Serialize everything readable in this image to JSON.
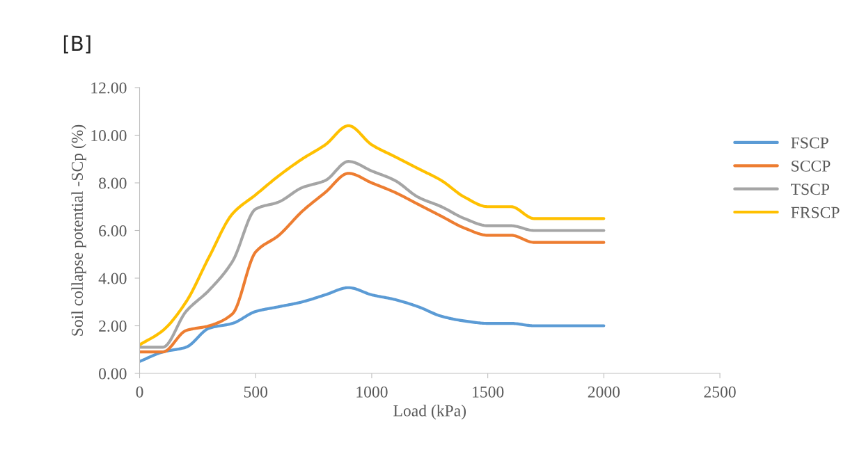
{
  "chart_data": {
    "type": "line",
    "title": "[B]",
    "xlabel": "Load (kPa)",
    "ylabel": "Soil collapse potential -SCp (%)",
    "x": [
      0,
      100,
      200,
      300,
      400,
      500,
      600,
      700,
      800,
      900,
      1000,
      1100,
      1200,
      1300,
      1400,
      1500,
      1600,
      1700,
      1800,
      2000
    ],
    "series": [
      {
        "name": "FSCP",
        "color": "#5b9bd5",
        "values": [
          0.5,
          0.9,
          1.1,
          1.9,
          2.1,
          2.6,
          2.8,
          3.0,
          3.3,
          3.6,
          3.3,
          3.1,
          2.8,
          2.4,
          2.2,
          2.1,
          2.1,
          2.0,
          2.0,
          2.0
        ]
      },
      {
        "name": "SCCP",
        "color": "#ed7d31",
        "values": [
          0.9,
          0.9,
          1.8,
          2.0,
          2.5,
          5.1,
          5.8,
          6.8,
          7.6,
          8.4,
          8.0,
          7.6,
          7.1,
          6.6,
          6.1,
          5.8,
          5.8,
          5.5,
          5.5,
          5.5
        ]
      },
      {
        "name": "TSCP",
        "color": "#a5a5a5",
        "values": [
          1.1,
          1.1,
          2.6,
          3.5,
          4.7,
          6.9,
          7.2,
          7.8,
          8.1,
          8.9,
          8.5,
          8.1,
          7.4,
          7.0,
          6.5,
          6.2,
          6.2,
          6.0,
          6.0,
          6.0
        ]
      },
      {
        "name": "FRSCP",
        "color": "#ffc000",
        "values": [
          1.2,
          1.8,
          3.0,
          4.9,
          6.7,
          7.5,
          8.3,
          9.0,
          9.6,
          10.4,
          9.6,
          9.1,
          8.6,
          8.1,
          7.4,
          7.0,
          7.0,
          6.5,
          6.5,
          6.5
        ]
      }
    ],
    "xlim": [
      0,
      2500
    ],
    "xticks": [
      0,
      500,
      1000,
      1500,
      2000,
      2500
    ],
    "ylim": [
      0,
      12
    ],
    "yticks": [
      {
        "value": 0,
        "label": "0.00"
      },
      {
        "value": 2,
        "label": "2.00"
      },
      {
        "value": 4,
        "label": "4.00"
      },
      {
        "value": 6,
        "label": "6.00"
      },
      {
        "value": 8,
        "label": "8.00"
      },
      {
        "value": 10,
        "label": "10.00"
      },
      {
        "value": 12,
        "label": "12.00"
      }
    ],
    "grid": false,
    "legend": "right",
    "marker": "none",
    "line_style": "solid"
  }
}
